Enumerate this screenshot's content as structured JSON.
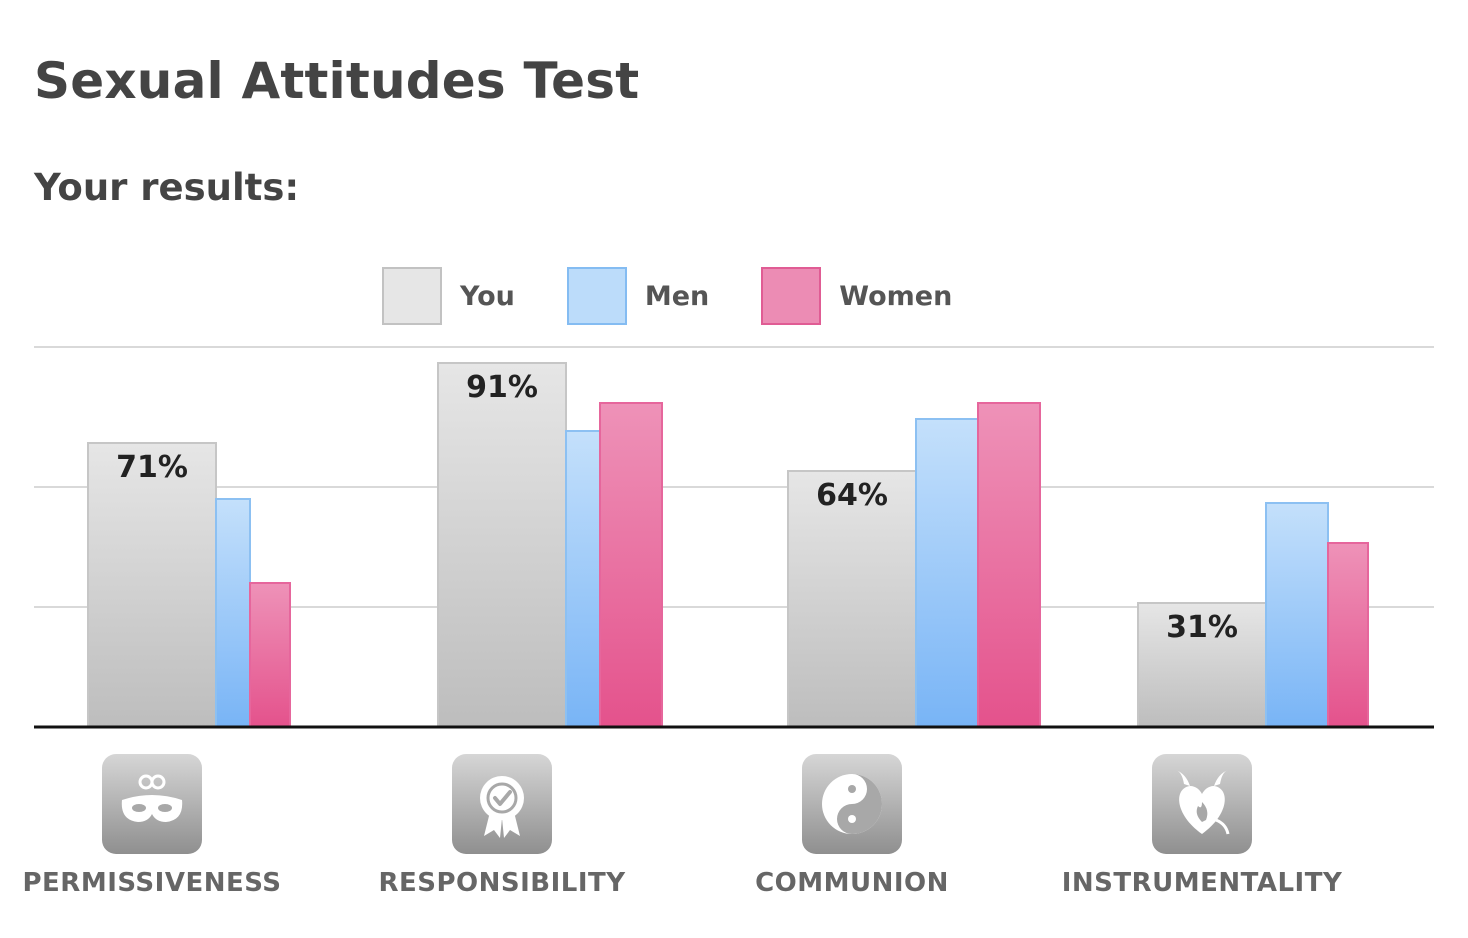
{
  "page": {
    "title": "Sexual Attitudes Test",
    "subtitle": "Your results:"
  },
  "colors": {
    "you": "#e6e6e6",
    "men": "#bcdcfa",
    "women": "#ec8cb4",
    "grid": "#d9d9d9",
    "axis": "#111111"
  },
  "chart_data": {
    "type": "bar",
    "categories": [
      "PERMISSIVENESS",
      "RESPONSIBILITY",
      "COMMUNION",
      "INSTRUMENTALITY"
    ],
    "category_icons": [
      "mask-icon",
      "award-icon",
      "yin-yang-icon",
      "heart-horns-icon"
    ],
    "series": [
      {
        "name": "You",
        "values": [
          71,
          91,
          64,
          31
        ],
        "data_labels": [
          "71%",
          "91%",
          "64%",
          "31%"
        ]
      },
      {
        "name": "Men",
        "values": [
          57,
          74,
          77,
          56
        ]
      },
      {
        "name": "Women",
        "values": [
          36,
          81,
          81,
          46
        ]
      }
    ],
    "ylim": [
      0,
      100
    ],
    "grid": true,
    "legend_position": "top-center",
    "title": "",
    "xlabel": "",
    "ylabel": ""
  }
}
